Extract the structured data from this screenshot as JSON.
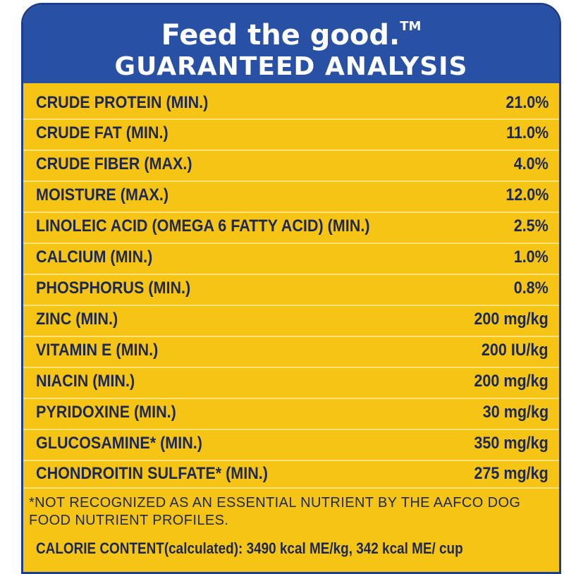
{
  "header": {
    "tagline": "Feed the good.",
    "trademark": "TM",
    "title": "GUARANTEED ANALYSIS"
  },
  "rows": [
    {
      "label": "CRUDE PROTEIN (MIN.)",
      "value": "21.0%"
    },
    {
      "label": "CRUDE FAT (MIN.)",
      "value": "11.0%"
    },
    {
      "label": "CRUDE FIBER (MAX.)",
      "value": "4.0%"
    },
    {
      "label": "MOISTURE (MAX.)",
      "value": "12.0%"
    },
    {
      "label": "LINOLEIC ACID (OMEGA 6 FATTY ACID) (MIN.)",
      "value": "2.5%"
    },
    {
      "label": "CALCIUM (MIN.)",
      "value": "1.0%"
    },
    {
      "label": "PHOSPHORUS (MIN.)",
      "value": "0.8%"
    },
    {
      "label": "ZINC (MIN.)",
      "value": "200 mg/kg"
    },
    {
      "label": "VITAMIN E (MIN.)",
      "value": "200 IU/kg"
    },
    {
      "label": "NIACIN (MIN.)",
      "value": "200 mg/kg"
    },
    {
      "label": "PYRIDOXINE (MIN.)",
      "value": "30 mg/kg"
    },
    {
      "label": "GLUCOSAMINE* (MIN.)",
      "value": "350 mg/kg"
    },
    {
      "label": "CHONDROITIN SULFATE* (MIN.)",
      "value": "275 mg/kg"
    }
  ],
  "footnote": "*NOT RECOGNIZED AS AN ESSENTIAL NUTRIENT BY THE AAFCO DOG FOOD NUTRIENT PROFILES.",
  "calorie": {
    "label": "CALORIE CONTENT",
    "qualifier": "(calculated):",
    "value": "3490 kcal ME/kg, 342 kcal ME/ cup"
  },
  "colors": {
    "panel": "#f5c415",
    "header": "#2851a5",
    "border": "#1d3d8f",
    "text": "#1d2850"
  }
}
